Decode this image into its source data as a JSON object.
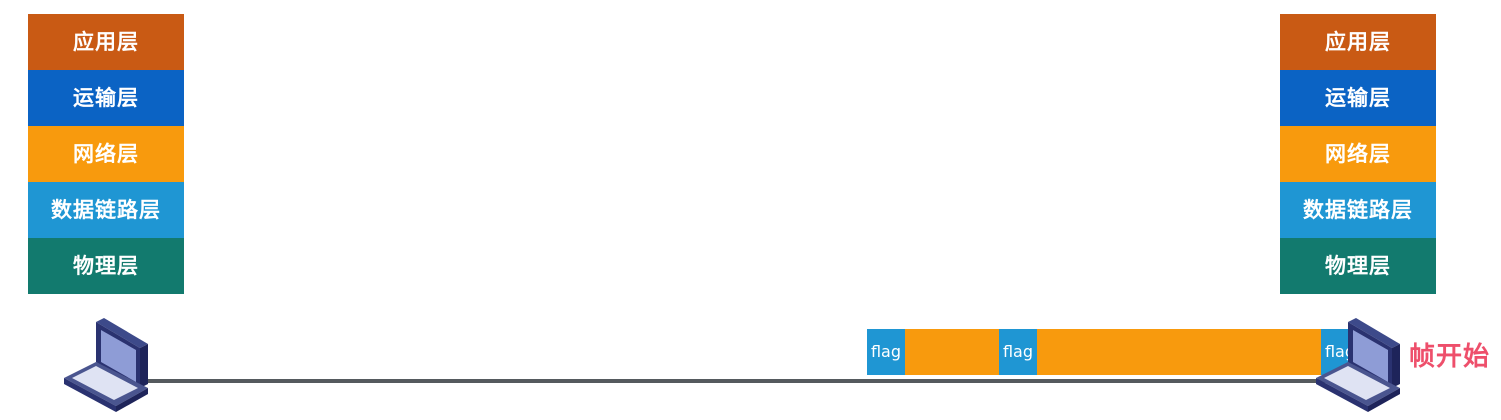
{
  "left_stack": {
    "layers": [
      {
        "label": "应用层",
        "color": "#c95a14"
      },
      {
        "label": "运输层",
        "color": "#0b63c4"
      },
      {
        "label": "网络层",
        "color": "#f89a0d"
      },
      {
        "label": "数据链路层",
        "color": "#1f96d3"
      },
      {
        "label": "物理层",
        "color": "#127a6e"
      }
    ]
  },
  "right_stack": {
    "layers": [
      {
        "label": "应用层",
        "color": "#c95a14"
      },
      {
        "label": "运输层",
        "color": "#0b63c4"
      },
      {
        "label": "网络层",
        "color": "#f89a0d"
      },
      {
        "label": "数据链路层",
        "color": "#1f96d3"
      },
      {
        "label": "物理层",
        "color": "#127a6e"
      }
    ]
  },
  "frame": {
    "flags": [
      "flag",
      "flag",
      "flag"
    ],
    "flag_color": "#1f96d3",
    "body_color": "#f89a0d"
  },
  "caption": "帧开始",
  "icons": {
    "left_host": "laptop-icon",
    "right_host": "laptop-icon"
  }
}
